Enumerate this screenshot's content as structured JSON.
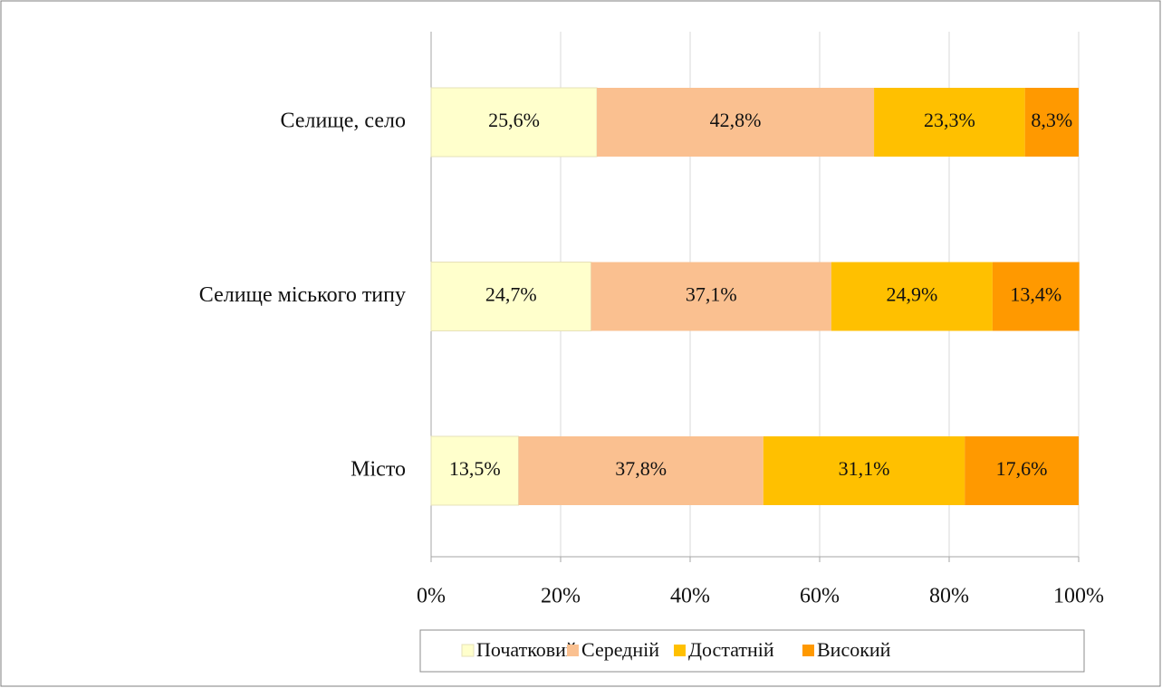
{
  "chart_data": {
    "type": "stacked-bar-horizontal",
    "categories": [
      "Селище, село",
      "Селище міського типу",
      "Місто"
    ],
    "series": [
      {
        "name": "Початковий",
        "color": "#FFFFCC",
        "values": [
          25.6,
          24.7,
          13.5
        ],
        "value_labels": [
          "25,6%",
          "24,7%",
          "13,5%"
        ]
      },
      {
        "name": "Середній",
        "color": "#FAC090",
        "values": [
          42.8,
          37.1,
          37.8
        ],
        "value_labels": [
          "42,8%",
          "37,1%",
          "37,8%"
        ]
      },
      {
        "name": "Достатній",
        "color": "#FFC000",
        "values": [
          23.3,
          24.9,
          31.1
        ],
        "value_labels": [
          "23,3%",
          "24,9%",
          "31,1%"
        ]
      },
      {
        "name": "Високий",
        "color": "#FF9900",
        "values": [
          8.3,
          13.4,
          17.6
        ],
        "value_labels": [
          "8,3%",
          "13,4%",
          "17,6%"
        ]
      }
    ],
    "xlim": [
      0,
      100
    ],
    "xticks": [
      {
        "value": 0,
        "label": "0%"
      },
      {
        "value": 20,
        "label": "20%"
      },
      {
        "value": 40,
        "label": "40%"
      },
      {
        "value": 60,
        "label": "60%"
      },
      {
        "value": 80,
        "label": "80%"
      },
      {
        "value": 100,
        "label": "100%"
      }
    ],
    "grid": true,
    "legend": "bottom"
  }
}
